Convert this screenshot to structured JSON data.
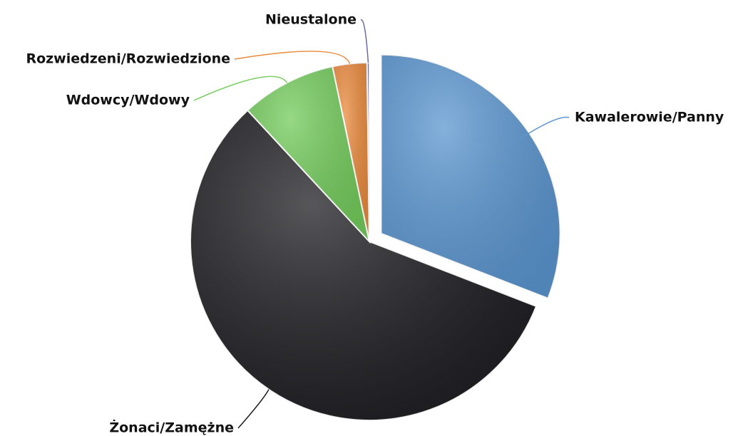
{
  "chart_data": {
    "type": "pie",
    "categories": [
      "Kawalerowie/Panny",
      "Żonaci/Zamężne",
      "Wdowcy/Wdowy",
      "Rozwiedzeni/Rozwiedzione",
      "Nieustalone"
    ],
    "values": [
      30.9,
      57.2,
      8.6,
      3.1,
      0.2
    ],
    "colors": [
      "#5b96d0",
      "#1f1f23",
      "#74cc5c",
      "#ea8a3c",
      "#6a6aa8"
    ]
  }
}
